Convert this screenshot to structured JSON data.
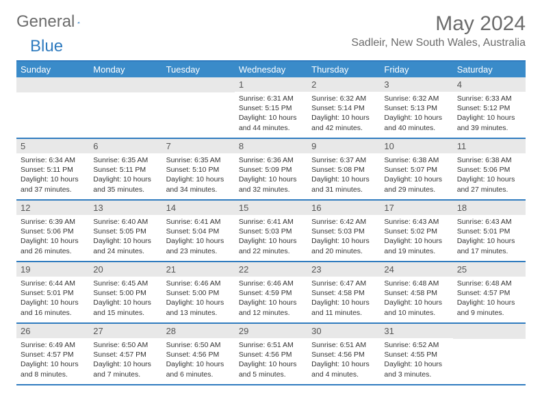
{
  "logo": {
    "text1": "General",
    "text2": "Blue"
  },
  "title": "May 2024",
  "location": "Sadleir, New South Wales, Australia",
  "colors": {
    "header_bg": "#3a8bc9",
    "header_border": "#2f7bbf",
    "daynum_bg": "#e8e8e8",
    "text": "#333333",
    "title_color": "#6b6b6b"
  },
  "day_names": [
    "Sunday",
    "Monday",
    "Tuesday",
    "Wednesday",
    "Thursday",
    "Friday",
    "Saturday"
  ],
  "weeks": [
    [
      {
        "n": "",
        "sr": "",
        "ss": "",
        "dl": ""
      },
      {
        "n": "",
        "sr": "",
        "ss": "",
        "dl": ""
      },
      {
        "n": "",
        "sr": "",
        "ss": "",
        "dl": ""
      },
      {
        "n": "1",
        "sr": "6:31 AM",
        "ss": "5:15 PM",
        "dl": "10 hours and 44 minutes."
      },
      {
        "n": "2",
        "sr": "6:32 AM",
        "ss": "5:14 PM",
        "dl": "10 hours and 42 minutes."
      },
      {
        "n": "3",
        "sr": "6:32 AM",
        "ss": "5:13 PM",
        "dl": "10 hours and 40 minutes."
      },
      {
        "n": "4",
        "sr": "6:33 AM",
        "ss": "5:12 PM",
        "dl": "10 hours and 39 minutes."
      }
    ],
    [
      {
        "n": "5",
        "sr": "6:34 AM",
        "ss": "5:11 PM",
        "dl": "10 hours and 37 minutes."
      },
      {
        "n": "6",
        "sr": "6:35 AM",
        "ss": "5:11 PM",
        "dl": "10 hours and 35 minutes."
      },
      {
        "n": "7",
        "sr": "6:35 AM",
        "ss": "5:10 PM",
        "dl": "10 hours and 34 minutes."
      },
      {
        "n": "8",
        "sr": "6:36 AM",
        "ss": "5:09 PM",
        "dl": "10 hours and 32 minutes."
      },
      {
        "n": "9",
        "sr": "6:37 AM",
        "ss": "5:08 PM",
        "dl": "10 hours and 31 minutes."
      },
      {
        "n": "10",
        "sr": "6:38 AM",
        "ss": "5:07 PM",
        "dl": "10 hours and 29 minutes."
      },
      {
        "n": "11",
        "sr": "6:38 AM",
        "ss": "5:06 PM",
        "dl": "10 hours and 27 minutes."
      }
    ],
    [
      {
        "n": "12",
        "sr": "6:39 AM",
        "ss": "5:06 PM",
        "dl": "10 hours and 26 minutes."
      },
      {
        "n": "13",
        "sr": "6:40 AM",
        "ss": "5:05 PM",
        "dl": "10 hours and 24 minutes."
      },
      {
        "n": "14",
        "sr": "6:41 AM",
        "ss": "5:04 PM",
        "dl": "10 hours and 23 minutes."
      },
      {
        "n": "15",
        "sr": "6:41 AM",
        "ss": "5:03 PM",
        "dl": "10 hours and 22 minutes."
      },
      {
        "n": "16",
        "sr": "6:42 AM",
        "ss": "5:03 PM",
        "dl": "10 hours and 20 minutes."
      },
      {
        "n": "17",
        "sr": "6:43 AM",
        "ss": "5:02 PM",
        "dl": "10 hours and 19 minutes."
      },
      {
        "n": "18",
        "sr": "6:43 AM",
        "ss": "5:01 PM",
        "dl": "10 hours and 17 minutes."
      }
    ],
    [
      {
        "n": "19",
        "sr": "6:44 AM",
        "ss": "5:01 PM",
        "dl": "10 hours and 16 minutes."
      },
      {
        "n": "20",
        "sr": "6:45 AM",
        "ss": "5:00 PM",
        "dl": "10 hours and 15 minutes."
      },
      {
        "n": "21",
        "sr": "6:46 AM",
        "ss": "5:00 PM",
        "dl": "10 hours and 13 minutes."
      },
      {
        "n": "22",
        "sr": "6:46 AM",
        "ss": "4:59 PM",
        "dl": "10 hours and 12 minutes."
      },
      {
        "n": "23",
        "sr": "6:47 AM",
        "ss": "4:58 PM",
        "dl": "10 hours and 11 minutes."
      },
      {
        "n": "24",
        "sr": "6:48 AM",
        "ss": "4:58 PM",
        "dl": "10 hours and 10 minutes."
      },
      {
        "n": "25",
        "sr": "6:48 AM",
        "ss": "4:57 PM",
        "dl": "10 hours and 9 minutes."
      }
    ],
    [
      {
        "n": "26",
        "sr": "6:49 AM",
        "ss": "4:57 PM",
        "dl": "10 hours and 8 minutes."
      },
      {
        "n": "27",
        "sr": "6:50 AM",
        "ss": "4:57 PM",
        "dl": "10 hours and 7 minutes."
      },
      {
        "n": "28",
        "sr": "6:50 AM",
        "ss": "4:56 PM",
        "dl": "10 hours and 6 minutes."
      },
      {
        "n": "29",
        "sr": "6:51 AM",
        "ss": "4:56 PM",
        "dl": "10 hours and 5 minutes."
      },
      {
        "n": "30",
        "sr": "6:51 AM",
        "ss": "4:56 PM",
        "dl": "10 hours and 4 minutes."
      },
      {
        "n": "31",
        "sr": "6:52 AM",
        "ss": "4:55 PM",
        "dl": "10 hours and 3 minutes."
      },
      {
        "n": "",
        "sr": "",
        "ss": "",
        "dl": ""
      }
    ]
  ],
  "labels": {
    "sunrise": "Sunrise:",
    "sunset": "Sunset:",
    "daylight": "Daylight:"
  }
}
